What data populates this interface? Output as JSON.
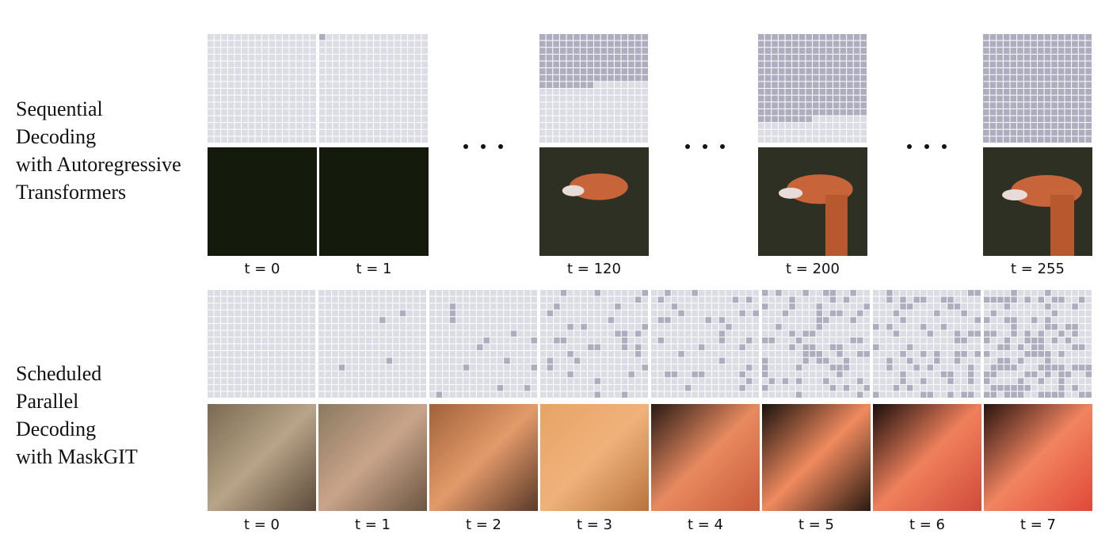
{
  "rows": [
    {
      "label_lines": [
        "Sequential",
        "Decoding",
        "with Autoregressive",
        "Transformers"
      ],
      "steps": [
        "t = 0",
        "t = 1",
        "t = 120",
        "t = 200",
        "t = 255"
      ]
    },
    {
      "label_lines": [
        "Scheduled",
        "Parallel",
        "Decoding",
        "with MaskGIT"
      ],
      "steps": [
        "t = 0",
        "t = 1",
        "t = 2",
        "t = 3",
        "t = 4",
        "t = 5",
        "t = 6",
        "t = 7"
      ]
    }
  ]
}
